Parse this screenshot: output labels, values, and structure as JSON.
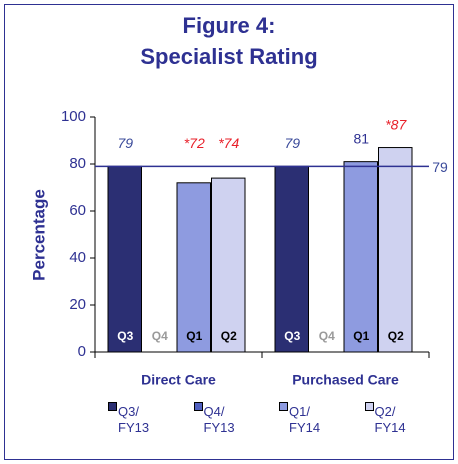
{
  "chart_data": {
    "type": "bar",
    "title": [
      "Figure 4:",
      "Specialist Rating"
    ],
    "y_label": "Percentage",
    "categories": [
      "Direct Care",
      "Purchased Care"
    ],
    "ylim": [
      0,
      100
    ],
    "yticks": [
      0,
      20,
      40,
      60,
      80,
      100
    ],
    "reference_line": {
      "value": 79,
      "color": "#2e3192"
    },
    "series": [
      {
        "name": "Q3/ FY13",
        "short": "Q3",
        "color": "#2b2f73",
        "short_color": "#ffffff",
        "values": [
          79,
          79
        ],
        "value_labels": [
          "79",
          "79"
        ],
        "label_colors": [
          "#3a4a9a",
          "#3a4a9a"
        ],
        "label_italic": [
          true,
          true
        ]
      },
      {
        "name": "Q4/ FY13",
        "short": "Q4",
        "color": "#5060c0",
        "short_color": "#9a9a9a",
        "values": [
          null,
          null
        ],
        "value_labels": [
          null,
          null
        ],
        "label_colors": [
          null,
          null
        ],
        "label_italic": [
          null,
          null
        ]
      },
      {
        "name": "Q1/ FY14",
        "short": "Q1",
        "color": "#8e9be0",
        "short_color": "#000000",
        "values": [
          72,
          81
        ],
        "value_labels": [
          "*72",
          "81"
        ],
        "label_colors": [
          "#e8202a",
          "#2e3192"
        ],
        "label_italic": [
          true,
          false
        ]
      },
      {
        "name": "Q2/ FY14",
        "short": "Q2",
        "color": "#cfd2f0",
        "short_color": "#000000",
        "values": [
          74,
          87
        ],
        "value_labels": [
          "*74",
          "*87"
        ],
        "label_colors": [
          "#e8202a",
          "#e8202a"
        ],
        "label_italic": [
          true,
          true
        ]
      }
    ]
  }
}
